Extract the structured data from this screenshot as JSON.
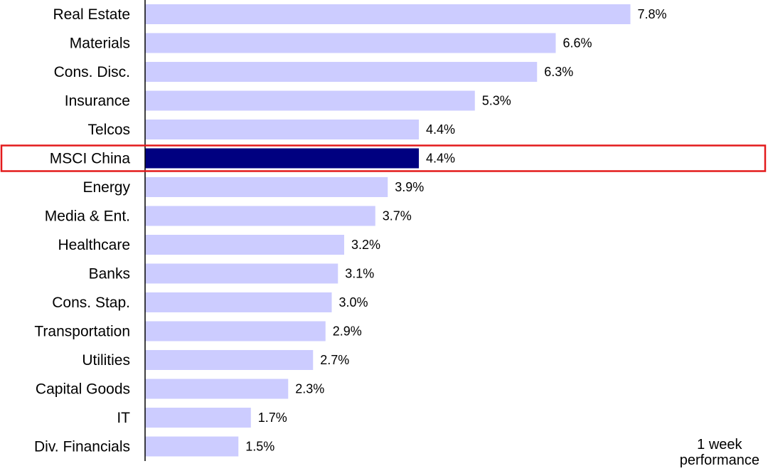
{
  "chart_data": {
    "type": "bar",
    "orientation": "horizontal",
    "categories": [
      "Real Estate",
      "Materials",
      "Cons. Disc.",
      "Insurance",
      "Telcos",
      "MSCI China",
      "Energy",
      "Media & Ent.",
      "Healthcare",
      "Banks",
      "Cons. Stap.",
      "Transportation",
      "Utilities",
      "Capital Goods",
      "IT",
      "Div. Financials"
    ],
    "values": [
      7.8,
      6.6,
      6.3,
      5.3,
      4.4,
      4.4,
      3.9,
      3.7,
      3.2,
      3.1,
      3.0,
      2.9,
      2.7,
      2.3,
      1.7,
      1.5
    ],
    "value_labels": [
      "7.8%",
      "6.6%",
      "6.3%",
      "5.3%",
      "4.4%",
      "4.4%",
      "3.9%",
      "3.7%",
      "3.2%",
      "3.1%",
      "3.0%",
      "2.9%",
      "2.7%",
      "2.3%",
      "1.7%",
      "1.5%"
    ],
    "highlight_category": "MSCI China",
    "xlim": [
      0,
      8.8
    ],
    "grid": false,
    "title": "",
    "xlabel": "",
    "ylabel": "",
    "colors": {
      "bar": "#ccccff",
      "highlight_bar": "#000080",
      "highlight_box": "#e31a1c",
      "axis": "#000000"
    }
  },
  "note": {
    "line1": "1 week",
    "line2": "performance"
  }
}
